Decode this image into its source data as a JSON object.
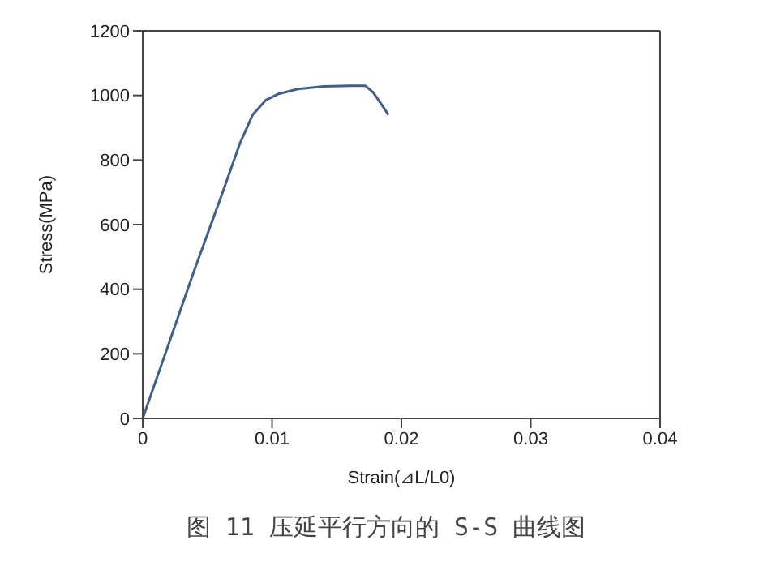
{
  "chart_data": {
    "type": "line",
    "xlabel": "Strain(⊿L/L0)",
    "ylabel": "Stress(MPa)",
    "annotations": [
      "图 11 压延平行方向的 S-S 曲线图"
    ],
    "x": [
      0,
      0.002,
      0.004,
      0.006,
      0.0075,
      0.0085,
      0.0095,
      0.0105,
      0.012,
      0.014,
      0.016,
      0.0172,
      0.0178,
      0.0185,
      0.019
    ],
    "series": [
      {
        "color": "#3f5f8f",
        "values": [
          0,
          230,
          460,
          680,
          850,
          940,
          985,
          1005,
          1020,
          1028,
          1030,
          1030,
          1010,
          970,
          940
        ]
      }
    ],
    "xlim": [
      0,
      0.04
    ],
    "xticks": [
      0,
      0.01,
      0.02,
      0.03,
      0.04
    ],
    "ylim": [
      0,
      1200
    ],
    "yticks": [
      0,
      200,
      400,
      600,
      800,
      1000,
      1200
    ],
    "grid": false,
    "marker": "none",
    "line_style": "solid"
  }
}
